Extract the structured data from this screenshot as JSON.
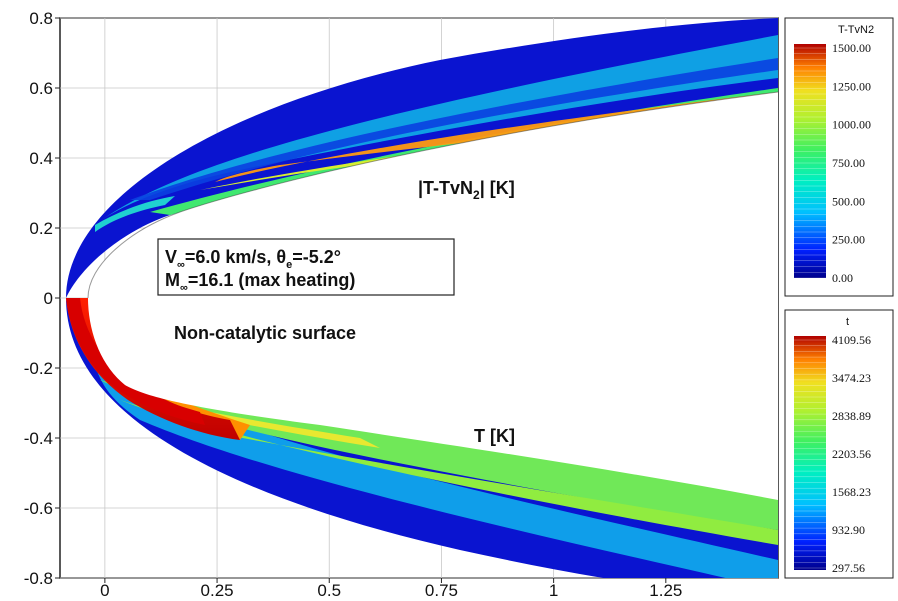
{
  "chart_data": {
    "type": "heatmap",
    "title": "",
    "xlabel": "",
    "ylabel": "",
    "xlim": [
      -0.1,
      1.5
    ],
    "ylim": [
      -0.8,
      0.8
    ],
    "x_ticks": [
      "0",
      "0.25",
      "0.5",
      "0.75",
      "1",
      "1.25"
    ],
    "x_tick_values": [
      0,
      0.25,
      0.5,
      0.75,
      1,
      1.25
    ],
    "y_ticks": [
      "0.8",
      "0.6",
      "0.4",
      "0.2",
      "0",
      "-0.2",
      "-0.4",
      "-0.6",
      "-0.8"
    ],
    "y_tick_values": [
      0.8,
      0.6,
      0.4,
      0.2,
      0,
      -0.2,
      -0.4,
      -0.6,
      -0.8
    ],
    "grid": true,
    "colormap": [
      "#0000b8",
      "#0060ff",
      "#00e0ff",
      "#30f0a0",
      "#90f040",
      "#e8e830",
      "#ff9000",
      "#e01000",
      "#b00000"
    ],
    "annotations": {
      "upper_field": "|T-TvN",
      "upper_field_sub": "2",
      "upper_field_unit": "| [K]",
      "lower_field": "T [K]",
      "condition_line1_a": "V",
      "condition_line1_sub1": "∞",
      "condition_line1_b": "=6.0 km/s, θ",
      "condition_line1_sub2": "e",
      "condition_line1_c": "=-5.2°",
      "condition_line2_a": "M",
      "condition_line2_sub": "∞",
      "condition_line2_b": "=16.1 (max heating)",
      "surface_label": "Non-catalytic surface"
    },
    "colorbars": [
      {
        "title": "T-TvN2",
        "field": "upper",
        "range": [
          0.0,
          1500.0
        ],
        "labels": [
          "1500.00",
          "1250.00",
          "1000.00",
          "750.00",
          "500.00",
          "250.00",
          "0.00"
        ],
        "label_values": [
          1500,
          1250,
          1000,
          750,
          500,
          250,
          0
        ]
      },
      {
        "title": "t",
        "field": "lower",
        "range": [
          297.56,
          4109.56
        ],
        "labels": [
          "4109.56",
          "3474.23",
          "2838.89",
          "2203.56",
          "1568.23",
          "932.90",
          "297.56"
        ],
        "label_values": [
          4109.56,
          3474.23,
          2838.89,
          2203.56,
          1568.23,
          932.9,
          297.56
        ]
      }
    ]
  }
}
